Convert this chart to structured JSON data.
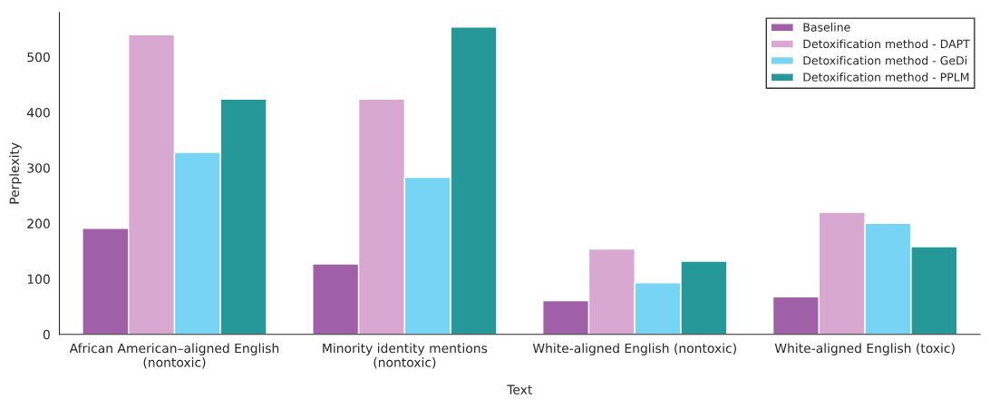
{
  "chart_data": {
    "type": "bar",
    "xlabel": "Text",
    "ylabel": "Perplexity",
    "categories": [
      "African American–aligned English\n(nontoxic)",
      "Minority identity mentions\n(nontoxic)",
      "White-aligned English (nontoxic)",
      "White-aligned English (toxic)"
    ],
    "series": [
      {
        "name": "Baseline",
        "color": "#a060a8",
        "values": [
          191,
          127,
          61,
          68
        ]
      },
      {
        "name": "Detoxification method - DAPT",
        "color": "#d9a8d0",
        "values": [
          540,
          424,
          154,
          220
        ]
      },
      {
        "name": "Detoxification method - GeDi",
        "color": "#78d4f4",
        "values": [
          328,
          283,
          93,
          200
        ]
      },
      {
        "name": "Detoxification method - PPLM",
        "color": "#26989a",
        "values": [
          424,
          554,
          132,
          158
        ]
      }
    ],
    "ylim": [
      0,
      580
    ],
    "yticks": [
      0,
      100,
      200,
      300,
      400,
      500
    ],
    "grid": false,
    "legend": "top right"
  }
}
